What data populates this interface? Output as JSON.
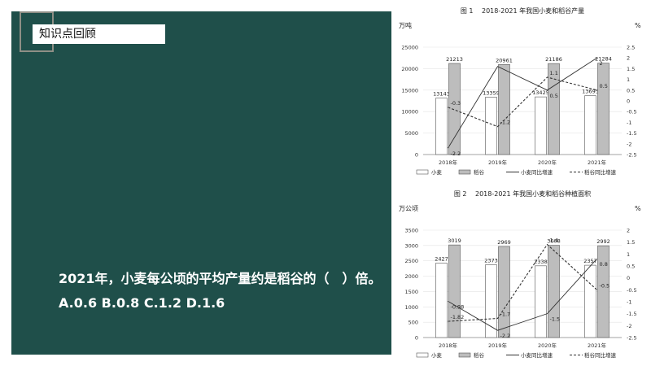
{
  "slide": {
    "section_label": "知识点回顾",
    "question_line1": "2021年，小麦每公顷的平均产量约是稻谷的（　）倍。",
    "question_line2": "A.0.6 B.0.8 C.1.2 D.1.6",
    "colors": {
      "panel_bg": "#1f4f4a",
      "frame": "#8f8f86",
      "text": "#ffffff"
    }
  },
  "chart_data": [
    {
      "type": "bar",
      "title": "图 1　 2018-2021 年我国小麦和稻谷产量",
      "ylabel_left": "万吨",
      "ylabel_right": "%",
      "categories": [
        "2018年",
        "2019年",
        "2020年",
        "2021年"
      ],
      "ylim_left": [
        0,
        25000
      ],
      "yticks_left": [
        "0",
        "5000",
        "10000",
        "15000",
        "20000",
        "25000"
      ],
      "ylim_right": [
        -2.5,
        2.5
      ],
      "yticks_right": [
        "-2.5",
        "-2",
        "-1.5",
        "-1",
        "-0.5",
        "0",
        "0.5",
        "1",
        "1.5",
        "2",
        "2.5"
      ],
      "bars": [
        {
          "name": "小麦",
          "values": [
            13143,
            13359,
            13425,
            13695
          ],
          "labels": [
            "13143",
            "13359",
            "13425",
            "13695"
          ],
          "color": "#ffffff"
        },
        {
          "name": "稻谷",
          "values": [
            21213,
            20961,
            21186,
            21284
          ],
          "labels": [
            "21213",
            "20961",
            "21186",
            "21284"
          ],
          "color": "#bdbdbd"
        }
      ],
      "lines": [
        {
          "name": "小麦同比增速",
          "values": [
            -2.2,
            1.6,
            0.5,
            2.0
          ],
          "labels": [
            "-2.2",
            "",
            "0.5",
            "2"
          ],
          "dash": false
        },
        {
          "name": "稻谷同比增速",
          "values": [
            -0.3,
            -1.2,
            1.1,
            0.5
          ],
          "labels": [
            "-0.3",
            "-1.2",
            "1.1",
            "0.5"
          ],
          "dash": true
        }
      ]
    },
    {
      "type": "bar",
      "title": "图 2　 2018-2021 年我国小麦和稻谷种植面积",
      "ylabel_left": "万公顷",
      "ylabel_right": "%",
      "categories": [
        "2018年",
        "2019年",
        "2020年",
        "2021年"
      ],
      "ylim_left": [
        0,
        3500
      ],
      "yticks_left": [
        "0",
        "500",
        "1000",
        "1500",
        "2000",
        "2500",
        "3000",
        "3500"
      ],
      "ylim_right": [
        -2.5,
        2
      ],
      "yticks_right": [
        "-2.5",
        "-2",
        "-1.5",
        "-1",
        "-0.5",
        "0",
        "0.5",
        "1",
        "1.5",
        "2"
      ],
      "bars": [
        {
          "name": "小麦",
          "values": [
            2427,
            2373,
            2338,
            2357
          ],
          "labels": [
            "2427",
            "2373",
            "2338",
            "2357"
          ],
          "color": "#ffffff"
        },
        {
          "name": "稻谷",
          "values": [
            3019,
            2969,
            3008,
            2992
          ],
          "labels": [
            "3019",
            "2969",
            "3008",
            "2992"
          ],
          "color": "#bdbdbd"
        }
      ],
      "lines": [
        {
          "name": "小麦同比增速",
          "values": [
            -0.98,
            -2.2,
            -1.5,
            0.8
          ],
          "labels": [
            "-0.98",
            "-2.2",
            "-1.5",
            "0.8"
          ],
          "dash": false
        },
        {
          "name": "稻谷同比增速",
          "values": [
            -1.82,
            -1.7,
            1.4,
            -0.5
          ],
          "labels": [
            "-1.82",
            "-1.7",
            "1.4",
            "-0.5"
          ],
          "dash": true
        }
      ]
    }
  ]
}
